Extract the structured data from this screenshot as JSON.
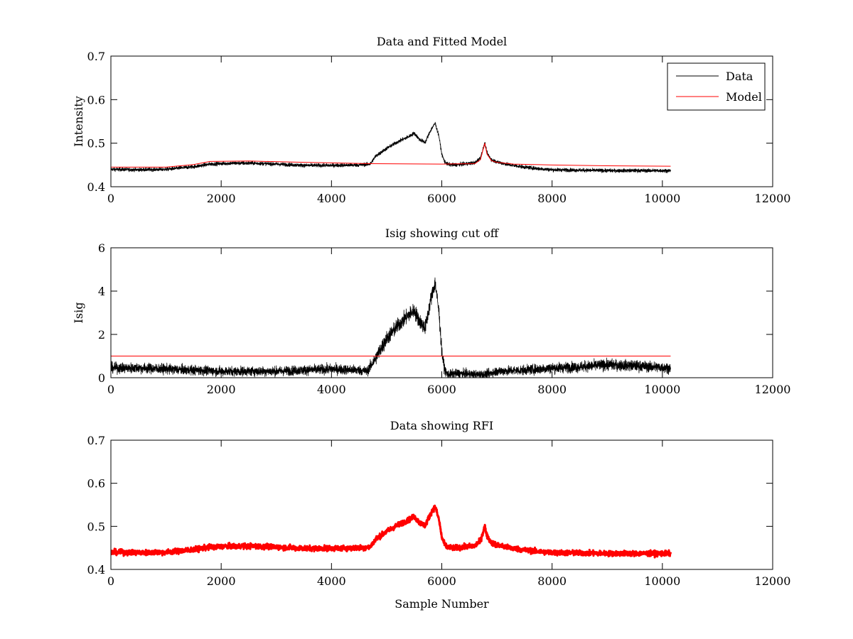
{
  "chart_data": [
    {
      "type": "line",
      "title": "Data and Fitted Model",
      "xlabel": "",
      "ylabel": "Intensity",
      "xlim": [
        0,
        12000
      ],
      "ylim": [
        0.4,
        0.7
      ],
      "xticks": [
        "0",
        "2000",
        "4000",
        "6000",
        "8000",
        "10000",
        "12000"
      ],
      "yticks": [
        "0.4",
        "0.5",
        "0.6",
        "0.7"
      ],
      "legend": {
        "position": "top-right",
        "entries": [
          "Data",
          "Model"
        ]
      },
      "series": [
        {
          "name": "Data",
          "color": "#000000",
          "style": "noisy",
          "noise": 0.004,
          "x": [
            0,
            500,
            1000,
            1500,
            1800,
            2200,
            2600,
            3000,
            3500,
            4000,
            4500,
            4700,
            4800,
            5000,
            5200,
            5400,
            5500,
            5600,
            5700,
            5800,
            5880,
            5950,
            6000,
            6050,
            6100,
            6200,
            6400,
            6600,
            6700,
            6780,
            6820,
            6900,
            7000,
            7200,
            7500,
            7800,
            8000,
            8500,
            9000,
            9500,
            10150
          ],
          "y": [
            0.44,
            0.439,
            0.44,
            0.446,
            0.452,
            0.454,
            0.454,
            0.452,
            0.449,
            0.449,
            0.45,
            0.452,
            0.47,
            0.488,
            0.503,
            0.515,
            0.523,
            0.508,
            0.502,
            0.53,
            0.546,
            0.515,
            0.475,
            0.458,
            0.452,
            0.45,
            0.452,
            0.455,
            0.466,
            0.5,
            0.478,
            0.462,
            0.457,
            0.451,
            0.445,
            0.441,
            0.439,
            0.438,
            0.437,
            0.437,
            0.437
          ]
        },
        {
          "name": "Model",
          "color": "#ff0000",
          "style": "line",
          "noise": 0,
          "x": [
            0,
            1000,
            1500,
            1800,
            2500,
            3500,
            4700,
            6000,
            6600,
            6700,
            6780,
            6820,
            6900,
            7000,
            7300,
            8000,
            9000,
            10150
          ],
          "y": [
            0.445,
            0.445,
            0.451,
            0.458,
            0.459,
            0.456,
            0.453,
            0.452,
            0.453,
            0.462,
            0.5,
            0.475,
            0.46,
            0.456,
            0.452,
            0.45,
            0.448,
            0.447
          ]
        }
      ]
    },
    {
      "type": "line",
      "title": "Isig showing cut off",
      "xlabel": "",
      "ylabel": "Isig",
      "xlim": [
        0,
        12000
      ],
      "ylim": [
        0,
        6
      ],
      "xticks": [
        "0",
        "2000",
        "4000",
        "6000",
        "8000",
        "10000",
        "12000"
      ],
      "yticks": [
        "0",
        "2",
        "4",
        "6"
      ],
      "series": [
        {
          "name": "Isig",
          "color": "#000000",
          "style": "noisy",
          "noise": 0.28,
          "clipMin": 0,
          "x": [
            0,
            500,
            1000,
            1500,
            2000,
            2500,
            3000,
            3500,
            4000,
            4500,
            4650,
            4800,
            5000,
            5200,
            5400,
            5500,
            5600,
            5700,
            5800,
            5880,
            5950,
            6000,
            6050,
            6100,
            6300,
            6600,
            6800,
            7000,
            7500,
            8000,
            8500,
            9000,
            9500,
            10150
          ],
          "y": [
            0.45,
            0.45,
            0.4,
            0.35,
            0.3,
            0.3,
            0.3,
            0.35,
            0.4,
            0.35,
            0.3,
            0.9,
            1.8,
            2.4,
            2.9,
            3.1,
            2.6,
            2.3,
            3.6,
            4.4,
            3.0,
            1.2,
            0.4,
            0.15,
            0.2,
            0.15,
            0.15,
            0.3,
            0.35,
            0.45,
            0.5,
            0.6,
            0.55,
            0.45
          ]
        },
        {
          "name": "Cut off",
          "color": "#ff0000",
          "style": "line",
          "noise": 0,
          "x": [
            0,
            10150
          ],
          "y": [
            1,
            1
          ]
        }
      ]
    },
    {
      "type": "line",
      "title": "Data showing RFI",
      "xlabel": "Sample Number",
      "ylabel": "",
      "xlim": [
        0,
        12000
      ],
      "ylim": [
        0.4,
        0.7
      ],
      "xticks": [
        "0",
        "2000",
        "4000",
        "6000",
        "8000",
        "10000",
        "12000"
      ],
      "yticks": [
        "0.4",
        "0.5",
        "0.6",
        "0.7"
      ],
      "series": [
        {
          "name": "RFI",
          "color": "#ff0000",
          "style": "band",
          "noise": 0.006,
          "x": [
            0,
            500,
            1000,
            1500,
            1800,
            2200,
            2600,
            3000,
            3500,
            4000,
            4500,
            4700,
            4800,
            5000,
            5200,
            5400,
            5500,
            5600,
            5700,
            5800,
            5880,
            5950,
            6000,
            6050,
            6100,
            6200,
            6400,
            6600,
            6700,
            6780,
            6820,
            6900,
            7000,
            7200,
            7500,
            7800,
            8000,
            8500,
            9000,
            9500,
            10150
          ],
          "y": [
            0.44,
            0.439,
            0.44,
            0.446,
            0.452,
            0.454,
            0.454,
            0.452,
            0.449,
            0.449,
            0.45,
            0.452,
            0.47,
            0.488,
            0.503,
            0.515,
            0.523,
            0.508,
            0.502,
            0.53,
            0.546,
            0.515,
            0.475,
            0.458,
            0.452,
            0.45,
            0.452,
            0.455,
            0.466,
            0.5,
            0.478,
            0.462,
            0.457,
            0.451,
            0.445,
            0.441,
            0.439,
            0.438,
            0.437,
            0.437,
            0.437
          ]
        }
      ]
    }
  ]
}
